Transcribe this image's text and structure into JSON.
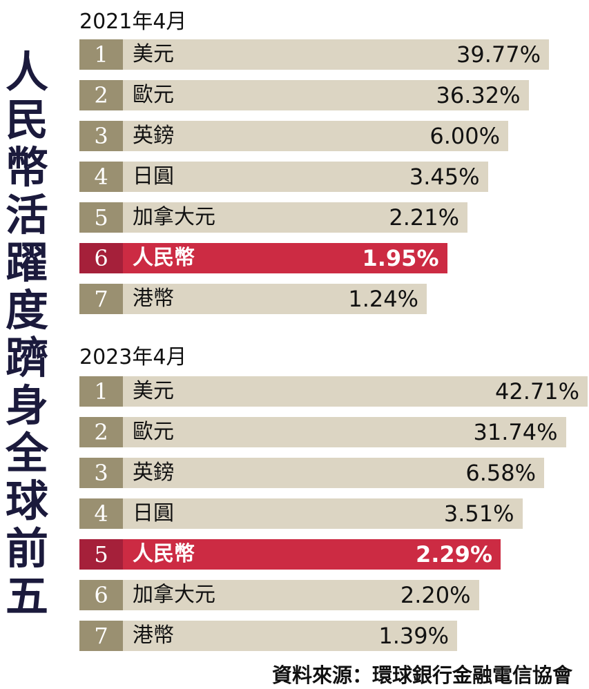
{
  "title": "人民幣活躍度躋身全球前五",
  "sections": [
    {
      "heading": "2021年4月",
      "rows": [
        {
          "rank": "1",
          "name": "美元",
          "value": "39.77%"
        },
        {
          "rank": "2",
          "name": "歐元",
          "value": "36.32%"
        },
        {
          "rank": "3",
          "name": "英鎊",
          "value": "6.00%"
        },
        {
          "rank": "4",
          "name": "日圓",
          "value": "3.45%"
        },
        {
          "rank": "5",
          "name": "加拿大元",
          "value": "2.21%"
        },
        {
          "rank": "6",
          "name": "人民幣",
          "value": "1.95%",
          "highlight": true
        },
        {
          "rank": "7",
          "name": "港幣",
          "value": "1.24%"
        }
      ]
    },
    {
      "heading": "2023年4月",
      "rows": [
        {
          "rank": "1",
          "name": "美元",
          "value": "42.71%"
        },
        {
          "rank": "2",
          "name": "歐元",
          "value": "31.74%"
        },
        {
          "rank": "3",
          "name": "英鎊",
          "value": "6.58%"
        },
        {
          "rank": "4",
          "name": "日圓",
          "value": "3.51%"
        },
        {
          "rank": "5",
          "name": "人民幣",
          "value": "2.29%",
          "highlight": true
        },
        {
          "rank": "6",
          "name": "加拿大元",
          "value": "2.20%"
        },
        {
          "rank": "7",
          "name": "港幣",
          "value": "1.39%"
        }
      ]
    }
  ],
  "source": "資料來源：環球銀行金融電信協會"
}
